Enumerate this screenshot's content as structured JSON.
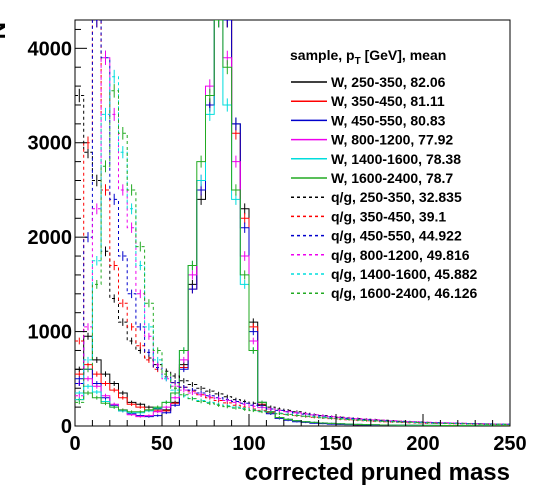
{
  "chart_data": {
    "type": "line",
    "title": "",
    "xlabel": "corrected pruned mass",
    "ylabel": "N",
    "xlim": [
      0,
      250
    ],
    "ylim": [
      0,
      4300
    ],
    "x_ticks": [
      "0",
      "50",
      "100",
      "150",
      "200",
      "250"
    ],
    "y_ticks": [
      "0",
      "1000",
      "2000",
      "3000",
      "4000"
    ],
    "legend_header": "sample, p_T [GeV], mean",
    "legend_position": "top-right",
    "bin_width": 5,
    "series": [
      {
        "name": "W, 250-350, 82.06",
        "color": "#000000",
        "dash": "solid",
        "values": [
          600,
          950,
          700,
          550,
          450,
          350,
          250,
          230,
          200,
          180,
          170,
          250,
          650,
          1500,
          2400,
          3400,
          4300,
          4300,
          3200,
          2300,
          1100,
          250,
          150,
          90,
          70,
          55,
          45,
          35,
          30,
          25,
          20,
          18,
          15,
          12,
          10,
          9,
          8,
          7,
          6,
          5,
          5,
          4,
          4,
          3,
          3,
          3,
          2,
          2,
          2,
          2
        ]
      },
      {
        "name": "W, 350-450, 81.11",
        "color": "#ff0000",
        "dash": "solid",
        "values": [
          550,
          650,
          550,
          450,
          380,
          300,
          230,
          200,
          170,
          160,
          160,
          240,
          620,
          1450,
          2500,
          3400,
          4300,
          4300,
          3100,
          2200,
          1050,
          230,
          140,
          85,
          65,
          50,
          40,
          32,
          27,
          22,
          19,
          16,
          14,
          11,
          9,
          8,
          7,
          6,
          5,
          5,
          4,
          4,
          3,
          3,
          3,
          2,
          2,
          2,
          2,
          2
        ]
      },
      {
        "name": "W, 450-550, 80.83",
        "color": "#0000cc",
        "dash": "solid",
        "values": [
          500,
          600,
          450,
          300,
          220,
          160,
          130,
          110,
          100,
          110,
          140,
          220,
          600,
          1450,
          2500,
          3400,
          4300,
          4300,
          3200,
          2100,
          1000,
          220,
          130,
          80,
          60,
          45,
          38,
          30,
          25,
          20,
          17,
          15,
          13,
          11,
          9,
          8,
          7,
          6,
          5,
          5,
          4,
          4,
          3,
          3,
          3,
          2,
          2,
          2,
          2,
          2
        ]
      },
      {
        "name": "W, 800-1200, 77.92",
        "color": "#ee00ee",
        "dash": "solid",
        "values": [
          450,
          500,
          420,
          320,
          230,
          170,
          120,
          100,
          110,
          150,
          200,
          300,
          700,
          1600,
          2600,
          3600,
          4300,
          3900,
          2800,
          1800,
          900,
          250,
          150,
          90,
          70,
          55,
          45,
          38,
          32,
          28,
          24,
          20,
          17,
          15,
          13,
          11,
          10,
          9,
          8,
          7,
          6,
          6,
          5,
          5,
          4,
          4,
          3,
          3,
          3,
          3
        ]
      },
      {
        "name": "W, 1400-1600, 78.38",
        "color": "#00dddd",
        "dash": "solid",
        "values": [
          350,
          420,
          360,
          260,
          200,
          160,
          140,
          140,
          160,
          190,
          250,
          350,
          800,
          1700,
          2600,
          3300,
          4300,
          3400,
          2400,
          1500,
          800,
          250,
          150,
          90,
          70,
          55,
          45,
          38,
          32,
          28,
          24,
          20,
          17,
          15,
          13,
          11,
          10,
          9,
          8,
          7,
          6,
          6,
          5,
          5,
          4,
          4,
          3,
          3,
          3,
          3
        ]
      },
      {
        "name": "W, 1600-2400, 78.7",
        "color": "#22aa22",
        "dash": "solid",
        "values": [
          280,
          350,
          300,
          240,
          200,
          170,
          150,
          150,
          170,
          200,
          250,
          350,
          800,
          1700,
          2800,
          3500,
          4300,
          3800,
          2500,
          1600,
          800,
          250,
          150,
          90,
          70,
          55,
          45,
          38,
          32,
          28,
          24,
          20,
          17,
          15,
          13,
          11,
          10,
          9,
          8,
          7,
          6,
          6,
          5,
          5,
          4,
          4,
          3,
          3,
          3,
          3
        ]
      },
      {
        "name": "q/g, 250-350, 32.835",
        "color": "#000000",
        "dash": "dashed",
        "values": [
          3500,
          2900,
          2600,
          1850,
          1350,
          1100,
          900,
          800,
          720,
          650,
          580,
          530,
          480,
          440,
          400,
          370,
          340,
          310,
          280,
          260,
          240,
          220,
          200,
          180,
          165,
          150,
          135,
          120,
          110,
          100,
          92,
          85,
          78,
          72,
          66,
          60,
          55,
          50,
          46,
          42,
          38,
          35,
          32,
          30,
          28,
          26,
          24,
          22,
          20,
          18
        ]
      },
      {
        "name": "q/g, 350-450, 39.1",
        "color": "#ff0000",
        "dash": "dashed",
        "values": [
          900,
          3000,
          4300,
          2500,
          1700,
          1300,
          1050,
          850,
          700,
          600,
          520,
          460,
          410,
          370,
          330,
          300,
          270,
          245,
          220,
          200,
          180,
          165,
          150,
          135,
          122,
          110,
          100,
          92,
          85,
          78,
          72,
          66,
          60,
          55,
          50,
          46,
          42,
          38,
          35,
          32,
          30,
          28,
          26,
          24,
          22,
          20,
          18,
          16,
          15,
          14
        ]
      },
      {
        "name": "q/g, 450-550, 44.922",
        "color": "#0000cc",
        "dash": "dashed",
        "values": [
          450,
          2000,
          4300,
          3900,
          2400,
          1800,
          1400,
          1050,
          780,
          620,
          520,
          460,
          410,
          380,
          350,
          320,
          300,
          280,
          260,
          240,
          220,
          200,
          180,
          165,
          150,
          138,
          126,
          115,
          105,
          96,
          88,
          80,
          73,
          67,
          61,
          56,
          51,
          47,
          43,
          40,
          37,
          34,
          31,
          29,
          27,
          25,
          23,
          21,
          20,
          18
        ]
      },
      {
        "name": "q/g, 800-1200, 49.816",
        "color": "#ee00ee",
        "dash": "dashed",
        "values": [
          320,
          1050,
          2300,
          3900,
          3300,
          2500,
          2100,
          1400,
          950,
          650,
          500,
          420,
          380,
          350,
          330,
          310,
          290,
          270,
          250,
          230,
          210,
          195,
          180,
          165,
          152,
          140,
          128,
          118,
          108,
          99,
          91,
          84,
          77,
          71,
          65,
          60,
          55,
          51,
          47,
          43,
          40,
          37,
          34,
          31,
          29,
          27,
          25,
          23,
          21,
          20
        ]
      },
      {
        "name": "q/g, 1400-1600, 45.882",
        "color": "#00dddd",
        "dash": "dashed",
        "values": [
          280,
          700,
          1750,
          3300,
          3700,
          2900,
          2300,
          1700,
          1050,
          700,
          500,
          380,
          320,
          290,
          270,
          250,
          230,
          215,
          200,
          185,
          170,
          158,
          146,
          135,
          124,
          114,
          105,
          97,
          89,
          82,
          76,
          70,
          64,
          59,
          54,
          50,
          46,
          42,
          39,
          36,
          33,
          30,
          28,
          26,
          24,
          22,
          20,
          19,
          18,
          17
        ]
      },
      {
        "name": "q/g, 1600-2400, 46.126",
        "color": "#22aa22",
        "dash": "dashed",
        "values": [
          250,
          600,
          1500,
          2750,
          3550,
          3100,
          2500,
          1900,
          1300,
          800,
          550,
          400,
          330,
          290,
          260,
          240,
          220,
          205,
          190,
          176,
          163,
          151,
          140,
          130,
          120,
          111,
          103,
          95,
          88,
          81,
          75,
          69,
          64,
          59,
          54,
          50,
          46,
          42,
          39,
          36,
          33,
          30,
          28,
          26,
          24,
          22,
          20,
          19,
          18,
          17
        ]
      }
    ]
  }
}
